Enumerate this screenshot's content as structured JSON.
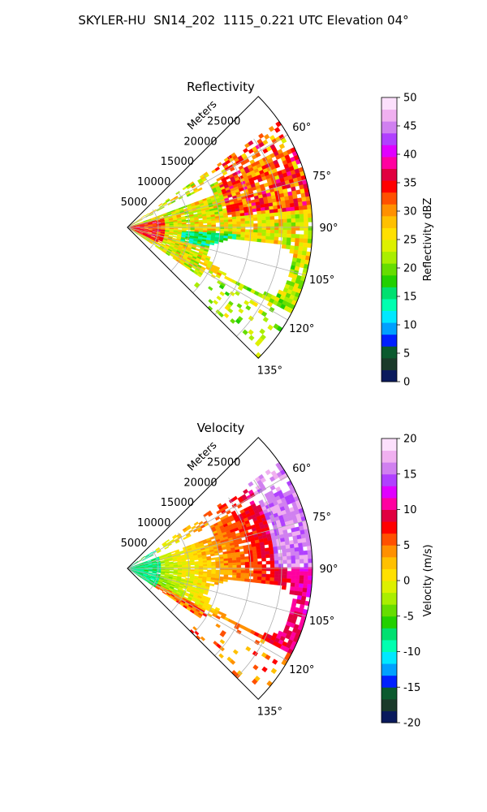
{
  "suptitle": "SKYLER-HU  SN14_202  1115_0.221 UTC Elevation 04°",
  "chart_data": [
    {
      "type": "heatmap",
      "title": "Reflectivity",
      "radial_label": "Meters",
      "radial_ticks": [
        "5000",
        "10000",
        "15000",
        "20000",
        "25000"
      ],
      "radial_tick_values": [
        5000,
        10000,
        15000,
        20000,
        25000
      ],
      "rlim": [
        0,
        30000
      ],
      "azimuth_ticks": [
        "60°",
        "75°",
        "90°",
        "105°",
        "120°",
        "135°"
      ],
      "azimuth_tick_values": [
        60,
        75,
        90,
        105,
        120,
        135
      ],
      "azimuth_range": [
        55,
        135
      ],
      "grid": true,
      "colorbar": {
        "label": "Reflectivity dBZ",
        "ticks": [
          "0",
          "5",
          "10",
          "15",
          "20",
          "25",
          "30",
          "35",
          "40",
          "45",
          "50"
        ],
        "range": [
          0,
          50
        ],
        "colors": [
          "#0a1a5c",
          "#1b3a2a",
          "#0b5a2e",
          "#0020ff",
          "#00a0ff",
          "#00e8ff",
          "#00ffb0",
          "#00e070",
          "#22d000",
          "#66dd00",
          "#aaee00",
          "#ddf000",
          "#ffe000",
          "#ffc000",
          "#ff9000",
          "#ff5000",
          "#ff0000",
          "#e00040",
          "#ff00a0",
          "#e000ff",
          "#b040ff",
          "#d080f0",
          "#f0b0f0",
          "#fce0fc"
        ]
      }
    },
    {
      "type": "heatmap",
      "title": "Velocity",
      "radial_label": "Meters",
      "radial_ticks": [
        "5000",
        "10000",
        "15000",
        "20000",
        "25000"
      ],
      "radial_tick_values": [
        5000,
        10000,
        15000,
        20000,
        25000
      ],
      "rlim": [
        0,
        30000
      ],
      "azimuth_ticks": [
        "60°",
        "75°",
        "90°",
        "105°",
        "120°",
        "135°"
      ],
      "azimuth_tick_values": [
        60,
        75,
        90,
        105,
        120,
        135
      ],
      "azimuth_range": [
        55,
        135
      ],
      "grid": true,
      "colorbar": {
        "label": "Velocity (m/s)",
        "ticks": [
          "-20",
          "-15",
          "-10",
          "-5",
          "0",
          "5",
          "10",
          "15",
          "20"
        ],
        "range": [
          -20,
          20
        ],
        "colors": [
          "#0a1a5c",
          "#1b3a2a",
          "#0b5a2e",
          "#0020ff",
          "#00a0ff",
          "#00e8ff",
          "#00ffb0",
          "#00e070",
          "#22d000",
          "#66dd00",
          "#aaee00",
          "#ddf000",
          "#ffe000",
          "#ffc000",
          "#ff9000",
          "#ff5000",
          "#ff0000",
          "#e00040",
          "#ff00a0",
          "#e000ff",
          "#b040ff",
          "#d080f0",
          "#f0b0f0",
          "#fce0fc"
        ]
      }
    }
  ]
}
